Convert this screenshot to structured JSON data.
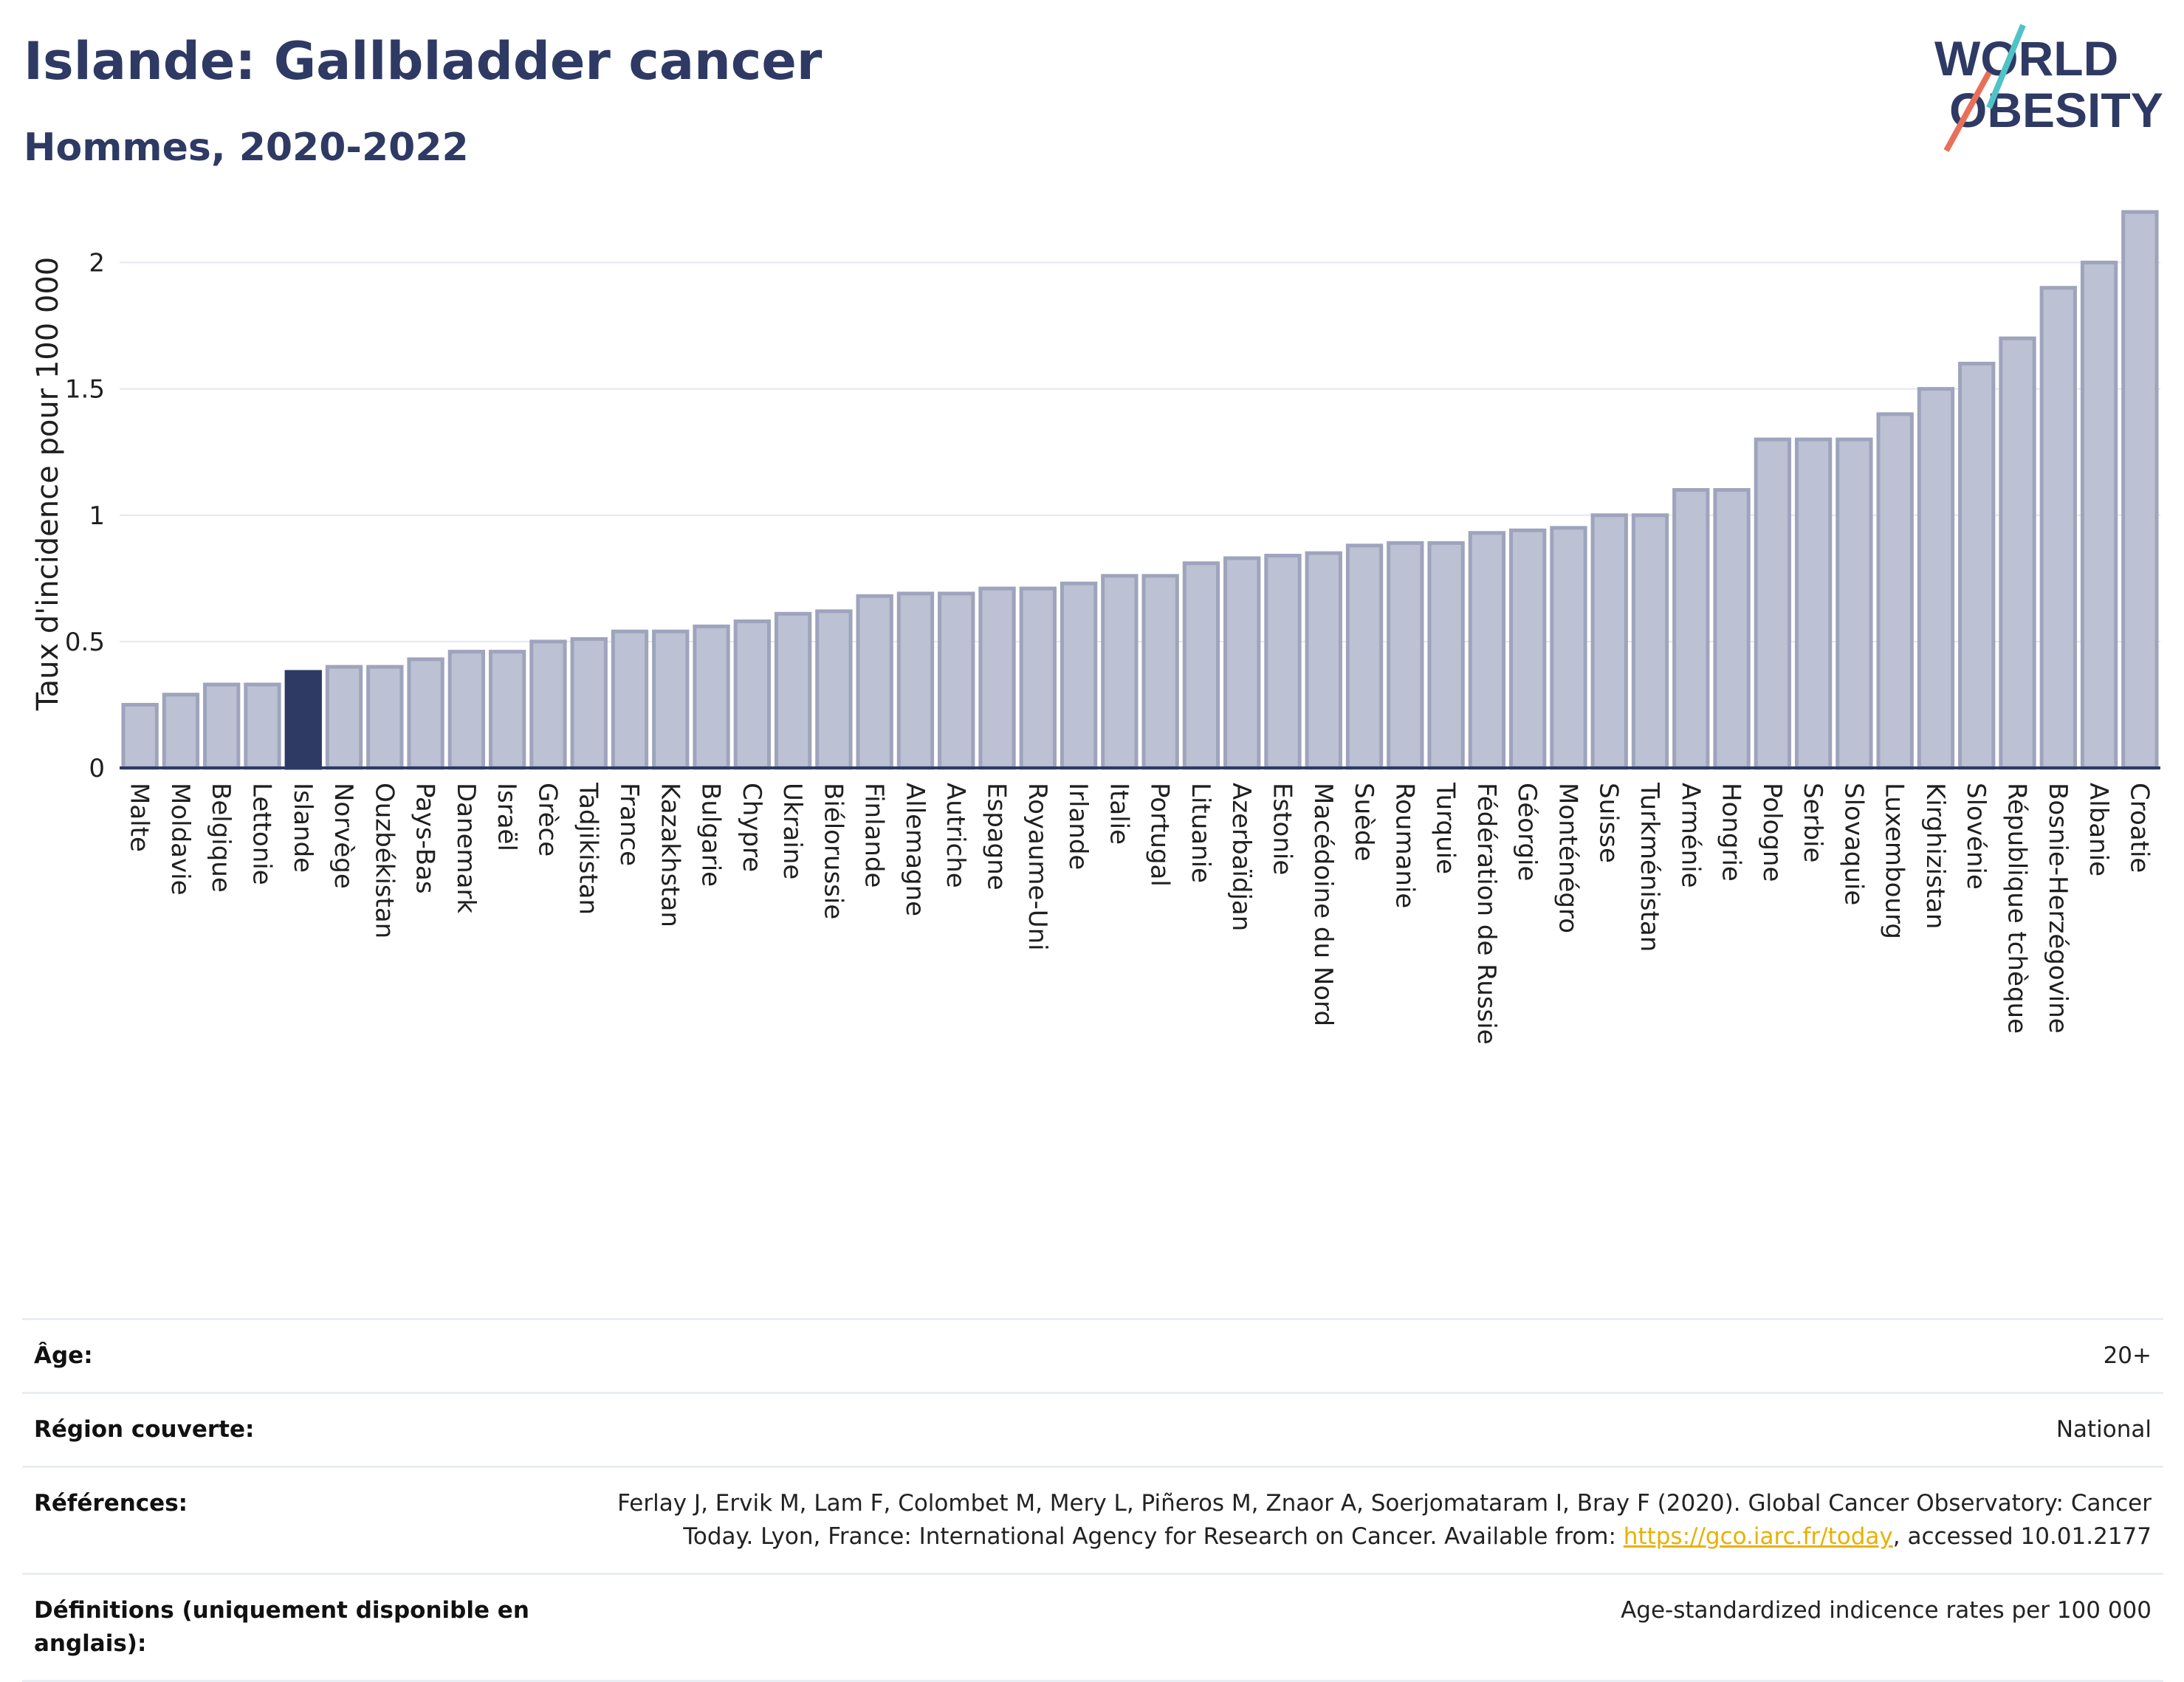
{
  "header": {
    "title": "Islande: Gallbladder cancer",
    "subtitle": "Hommes, 2020-2022"
  },
  "logo": {
    "line1": "WORLD",
    "line2": "OBESITY",
    "accent_colors": [
      "#4fc3c6",
      "#e8705a"
    ],
    "text_color": "#2e3a64"
  },
  "chart_data": {
    "type": "bar",
    "ylabel": "Taux d'incidence pour 100 000",
    "ylim": [
      0,
      2.25
    ],
    "yticks": [
      {
        "value": 0,
        "label": "0"
      },
      {
        "value": 0.5,
        "label": "0.5"
      },
      {
        "value": 1,
        "label": "1"
      },
      {
        "value": 1.5,
        "label": "1.5"
      },
      {
        "value": 2,
        "label": "2"
      }
    ],
    "grid": true,
    "highlight": "Islande",
    "colors": {
      "bar": "#bcc1d3",
      "bar_edge": "#9ea4bc",
      "highlight": "#2e3a64",
      "axis": "#2e3a64",
      "grid": "#e4e7ee"
    },
    "categories": [
      "Malte",
      "Moldavie",
      "Belgique",
      "Lettonie",
      "Islande",
      "Norvège",
      "Ouzbékistan",
      "Pays-Bas",
      "Danemark",
      "Israël",
      "Grèce",
      "Tadjikistan",
      "France",
      "Kazakhstan",
      "Bulgarie",
      "Chypre",
      "Ukraine",
      "Biélorussie",
      "Finlande",
      "Allemagne",
      "Autriche",
      "Espagne",
      "Royaume-Uni",
      "Irlande",
      "Italie",
      "Portugal",
      "Lituanie",
      "Azerbaïdjan",
      "Estonie",
      "Macédoine du Nord",
      "Suède",
      "Roumanie",
      "Turquie",
      "Fédération de Russie",
      "Géorgie",
      "Monténégro",
      "Suisse",
      "Turkménistan",
      "Arménie",
      "Hongrie",
      "Pologne",
      "Serbie",
      "Slovaquie",
      "Luxembourg",
      "Kirghizistan",
      "Slovénie",
      "République tchèque",
      "Bosnie-Herzégovine",
      "Albanie",
      "Croatie"
    ],
    "values": [
      0.25,
      0.29,
      0.33,
      0.33,
      0.38,
      0.4,
      0.4,
      0.43,
      0.46,
      0.46,
      0.5,
      0.51,
      0.54,
      0.54,
      0.56,
      0.58,
      0.61,
      0.62,
      0.68,
      0.69,
      0.69,
      0.71,
      0.71,
      0.73,
      0.76,
      0.76,
      0.81,
      0.83,
      0.84,
      0.85,
      0.88,
      0.89,
      0.89,
      0.93,
      0.94,
      0.95,
      1.0,
      1.0,
      1.1,
      1.1,
      1.3,
      1.3,
      1.3,
      1.4,
      1.5,
      1.6,
      1.7,
      1.9,
      2.0,
      2.2
    ]
  },
  "info_table": {
    "age": {
      "label": "Âge:",
      "value": "20+"
    },
    "region": {
      "label": "Région couverte:",
      "value": "National"
    },
    "references": {
      "label": "Références:",
      "text_before": "Ferlay J, Ervik M, Lam F, Colombet M, Mery L, Piñeros M, Znaor A, Soerjomataram I, Bray F (2020). Global Cancer Observatory: Cancer Today. Lyon, France: International Agency for Research on Cancer. Available from: ",
      "link": "https://gco.iarc.fr/today",
      "text_after": ", accessed 10.01.2177"
    },
    "definitions": {
      "label": "Définitions (uniquement disponible en anglais):",
      "value": "Age-standardized indicence rates per 100 000"
    }
  }
}
